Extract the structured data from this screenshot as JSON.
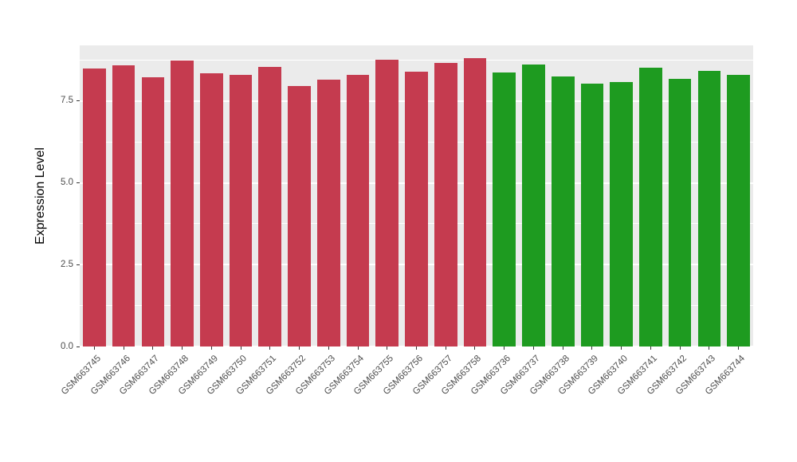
{
  "chart_data": {
    "type": "bar",
    "title": "",
    "xlabel": "",
    "ylabel": "Expression Level",
    "ylim": [
      0,
      9.2
    ],
    "yticks": [
      0.0,
      2.5,
      5.0,
      7.5
    ],
    "ytick_labels": [
      "0.0",
      "2.5",
      "5.0",
      "7.5"
    ],
    "minor_gridlines": [
      1.25,
      3.75,
      6.25,
      8.75
    ],
    "grid": "on",
    "legend": "none",
    "categories": [
      "GSM663745",
      "GSM663746",
      "GSM663747",
      "GSM663748",
      "GSM663749",
      "GSM663750",
      "GSM663751",
      "GSM663752",
      "GSM663753",
      "GSM663754",
      "GSM663755",
      "GSM663756",
      "GSM663757",
      "GSM663758",
      "GSM663736",
      "GSM663737",
      "GSM663738",
      "GSM663739",
      "GSM663740",
      "GSM663741",
      "GSM663742",
      "GSM663743",
      "GSM663744"
    ],
    "values": [
      8.5,
      8.59,
      8.23,
      8.74,
      8.35,
      8.3,
      8.55,
      7.95,
      8.16,
      8.3,
      8.77,
      8.4,
      8.67,
      8.81,
      8.38,
      8.62,
      8.25,
      8.03,
      8.08,
      8.52,
      8.18,
      8.42,
      8.3
    ],
    "bar_colors": [
      "#C53B4F",
      "#C53B4F",
      "#C53B4F",
      "#C53B4F",
      "#C53B4F",
      "#C53B4F",
      "#C53B4F",
      "#C53B4F",
      "#C53B4F",
      "#C53B4F",
      "#C53B4F",
      "#C53B4F",
      "#C53B4F",
      "#C53B4F",
      "#1E9B20",
      "#1E9B20",
      "#1E9B20",
      "#1E9B20",
      "#1E9B20",
      "#1E9B20",
      "#1E9B20",
      "#1E9B20",
      "#1E9B20"
    ]
  },
  "styles": {
    "panel_bg": "#EBEBEB",
    "grid_color": "#FFFFFF",
    "axis_text_color": "#4D4D4D",
    "red_group_color": "#C53B4F",
    "green_group_color": "#1E9B20"
  }
}
